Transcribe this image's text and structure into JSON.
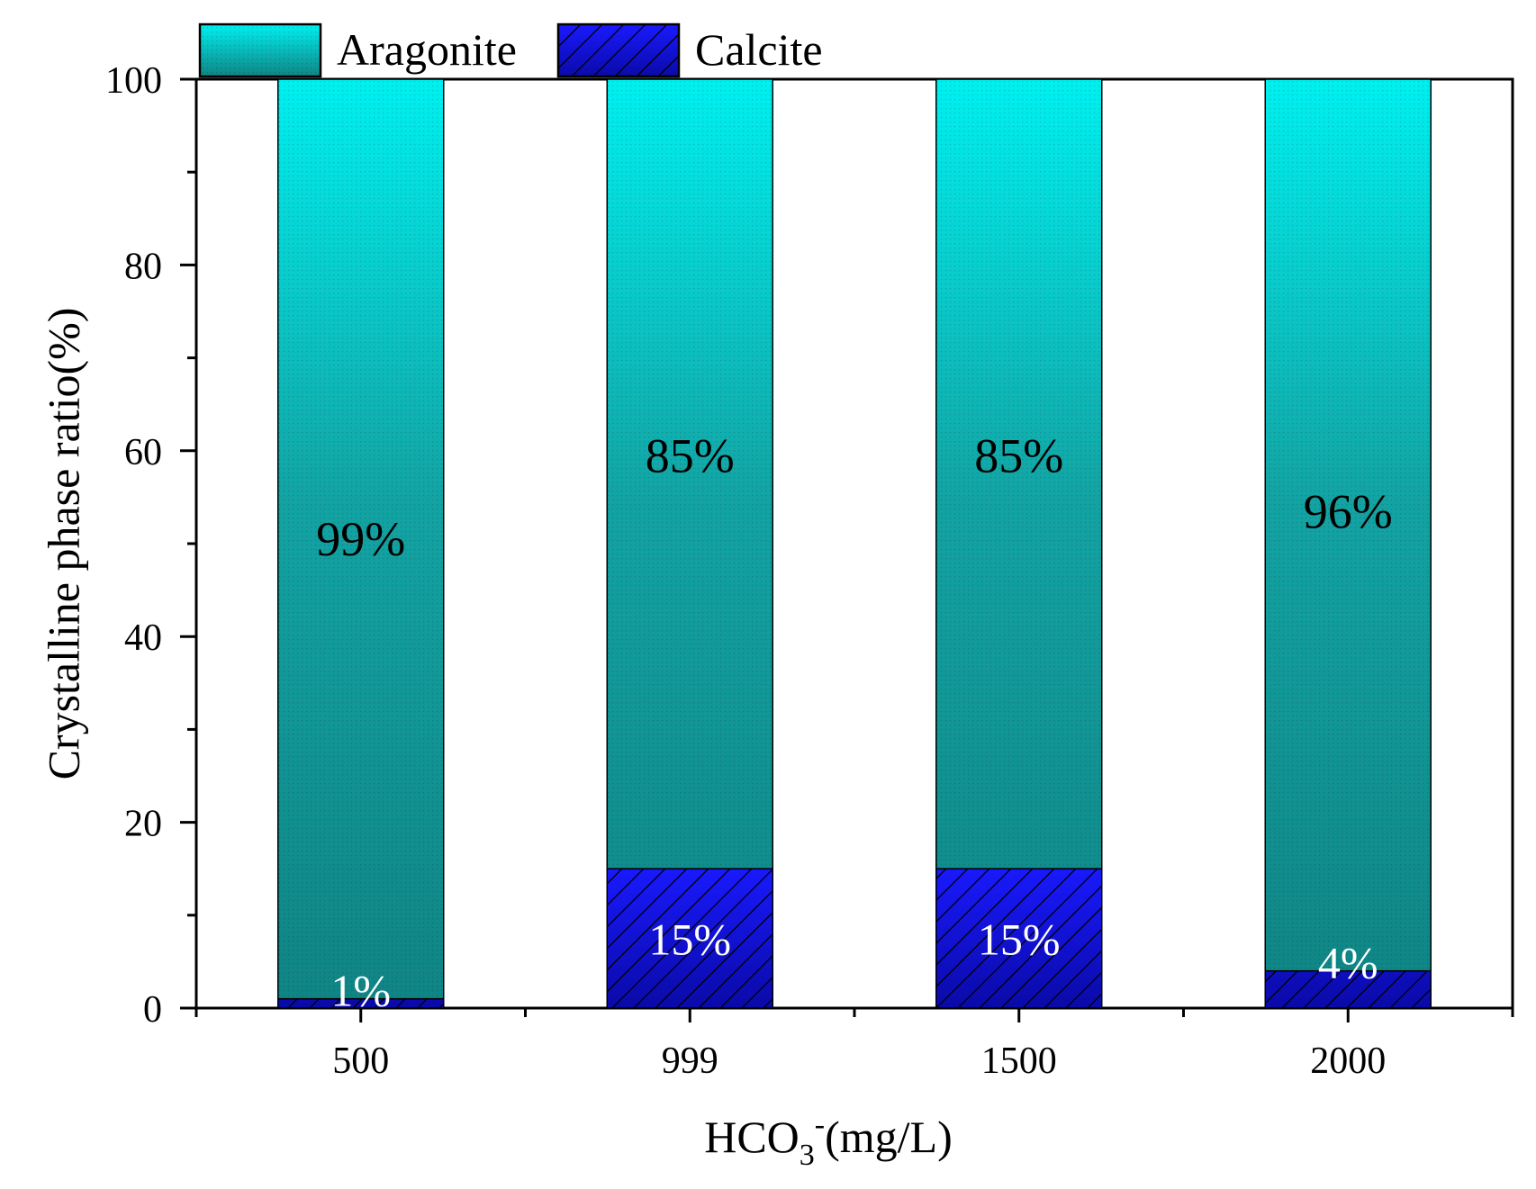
{
  "chart_data": {
    "type": "bar",
    "stacked": true,
    "categories": [
      "500",
      "999",
      "1500",
      "2000"
    ],
    "series": [
      {
        "name": "Calcite",
        "values": [
          1,
          15,
          15,
          4
        ],
        "labels": [
          "1%",
          "15%",
          "15%",
          "4%"
        ],
        "color": "#1010e8",
        "pattern": "hatch"
      },
      {
        "name": "Aragonite",
        "values": [
          99,
          85,
          85,
          96
        ],
        "labels": [
          "99%",
          "85%",
          "85%",
          "96%"
        ],
        "color_top": "#00f0f0",
        "color_bottom": "#108484",
        "pattern": "dots"
      }
    ],
    "legend": {
      "entries": [
        "Aragonite",
        "Calcite"
      ],
      "position": "top"
    },
    "xlabel": {
      "base": "HCO",
      "sub": "3",
      "sup": "-",
      "tail": "(mg/L)"
    },
    "ylabel": "Crystalline phase ratio(%)",
    "ylim": [
      0,
      100
    ],
    "yticks": [
      "0",
      "20",
      "40",
      "60",
      "80",
      "100"
    ]
  }
}
